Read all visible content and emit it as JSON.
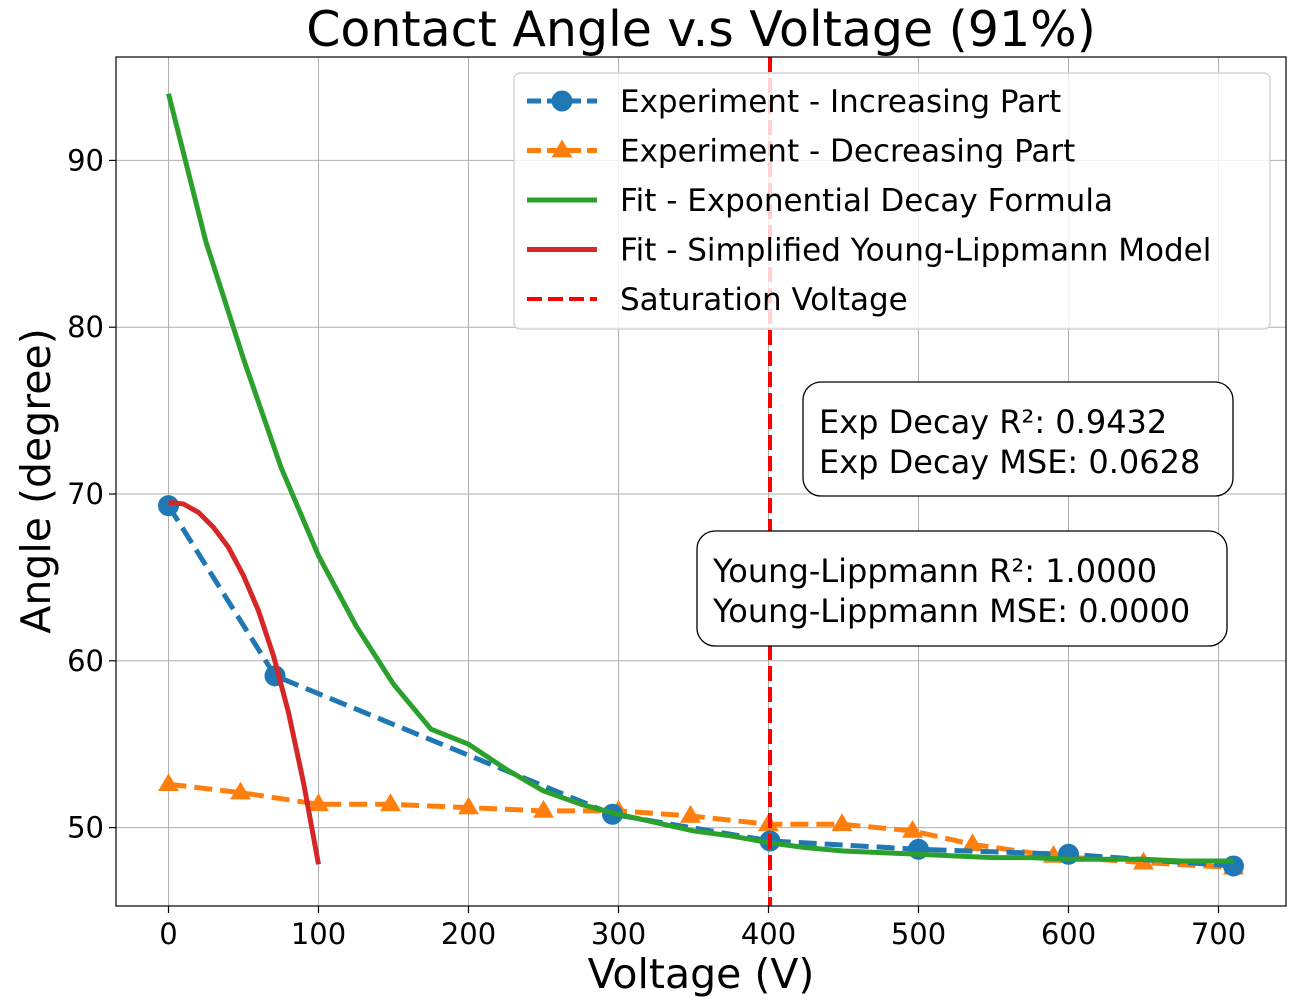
{
  "chart_data": {
    "type": "line",
    "title": "Contact Angle v.s Voltage (91%)",
    "xlabel": "Voltage (V)",
    "ylabel": "Angle (degree)",
    "xlim": [
      -35,
      745
    ],
    "ylim": [
      45.3,
      96.2
    ],
    "x_ticks": [
      0,
      100,
      200,
      300,
      400,
      500,
      600,
      700
    ],
    "y_ticks": [
      50,
      60,
      70,
      80,
      90
    ],
    "grid": true,
    "legend_position": "upper right",
    "series": [
      {
        "name": "Experiment - Increasing Part",
        "style": "dashed-circle",
        "color": "#1f77b4",
        "x": [
          0,
          71,
          296,
          401,
          500,
          600,
          710
        ],
        "y": [
          69.3,
          59.1,
          50.8,
          49.2,
          48.7,
          48.4,
          47.7
        ]
      },
      {
        "name": "Experiment - Decreasing Part",
        "style": "dashed-triangle",
        "color": "#ff7f0e",
        "x": [
          0,
          48,
          100,
          148,
          200,
          250,
          300,
          348,
          400,
          449,
          496,
          536,
          590,
          650,
          710
        ],
        "y": [
          52.6,
          52.1,
          51.4,
          51.4,
          51.2,
          51.0,
          51.0,
          50.7,
          50.2,
          50.2,
          49.8,
          49.0,
          48.3,
          47.9,
          47.6
        ]
      },
      {
        "name": "Fit - Exponential Decay Formula",
        "style": "solid",
        "color": "#2ca02c",
        "x": [
          0,
          25,
          50,
          75,
          100,
          125,
          150,
          175,
          200,
          225,
          250,
          275,
          300,
          325,
          350,
          375,
          400,
          425,
          450,
          475,
          500,
          525,
          550,
          575,
          600,
          625,
          650,
          675,
          700,
          710
        ],
        "y": [
          94.0,
          85.1,
          78.1,
          71.6,
          66.3,
          62.1,
          58.6,
          55.9,
          55.0,
          53.5,
          52.2,
          51.4,
          50.8,
          50.3,
          49.8,
          49.5,
          49.1,
          48.8,
          48.6,
          48.5,
          48.4,
          48.3,
          48.2,
          48.2,
          48.1,
          48.1,
          48.1,
          48.0,
          48.0,
          48.0
        ]
      },
      {
        "name": "Fit - Simplified Young-Lippmann Model",
        "style": "solid",
        "color": "#d62728",
        "x": [
          0,
          10,
          20,
          30,
          40,
          50,
          60,
          70,
          80,
          90,
          100
        ],
        "y": [
          69.5,
          69.4,
          68.9,
          68.0,
          66.8,
          65.1,
          63.0,
          60.3,
          56.9,
          52.7,
          47.8
        ]
      },
      {
        "name": "Saturation Voltage",
        "style": "vline-dashed",
        "color": "#ff0000",
        "x": [
          401
        ]
      }
    ],
    "annotations": [
      {
        "line1": "Exp Decay R²: 0.9432",
        "line2": "Exp Decay MSE: 0.0628"
      },
      {
        "line1": "Young-Lippmann R²: 1.0000",
        "line2": "Young-Lippmann MSE: 0.0000"
      }
    ]
  }
}
